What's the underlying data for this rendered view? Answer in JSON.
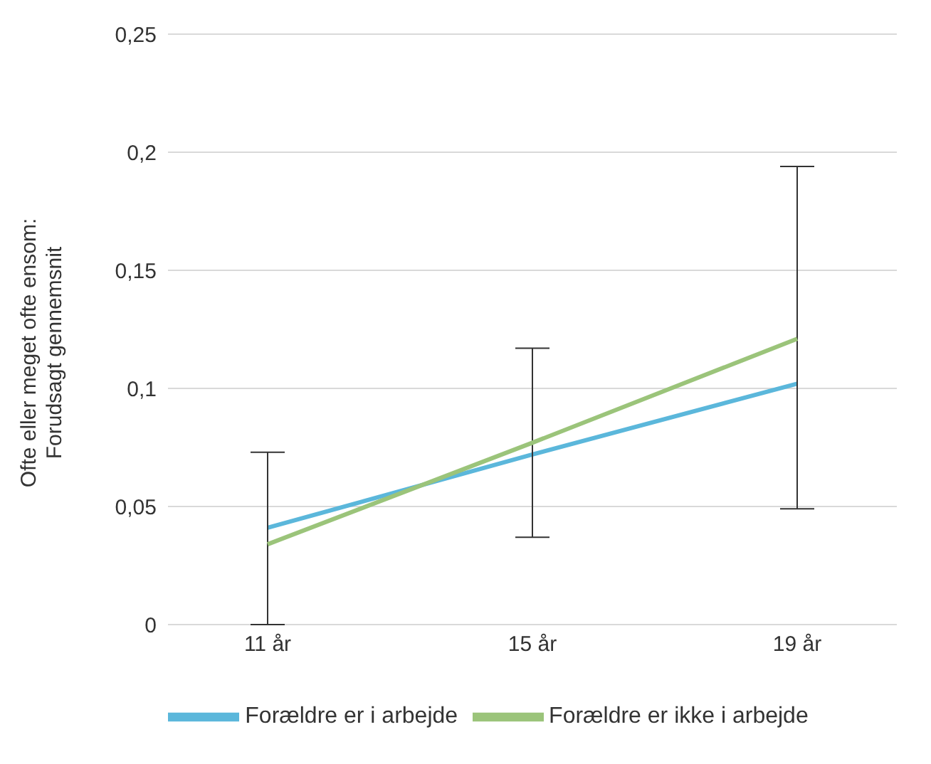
{
  "chart_data": {
    "type": "line",
    "ylabel": "Ofte eller meget ofte ensom:\nForudsagt gennemsnit",
    "categories": [
      "11 år",
      "15 år",
      "19 år"
    ],
    "series": [
      {
        "name": "Forældre er i arbejde",
        "color": "#5bb7db",
        "values": [
          0.041,
          0.072,
          0.102
        ]
      },
      {
        "name": "Forældre er ikke i arbejde",
        "color": "#9bc47a",
        "values": [
          0.034,
          0.077,
          0.121
        ],
        "errors": [
          [
            0,
            0.073
          ],
          [
            0.037,
            0.117
          ],
          [
            0.049,
            0.194
          ]
        ]
      }
    ],
    "ylim": [
      0,
      0.25
    ],
    "yticks": [
      {
        "value": 0,
        "label": "0"
      },
      {
        "value": 0.05,
        "label": "0,05"
      },
      {
        "value": 0.1,
        "label": "0,1"
      },
      {
        "value": 0.15,
        "label": "0,15"
      },
      {
        "value": 0.2,
        "label": "0,2"
      },
      {
        "value": 0.25,
        "label": "0,25"
      }
    ],
    "grid": "y",
    "legend": "bottom",
    "marker": "none",
    "line_style": "solid"
  }
}
